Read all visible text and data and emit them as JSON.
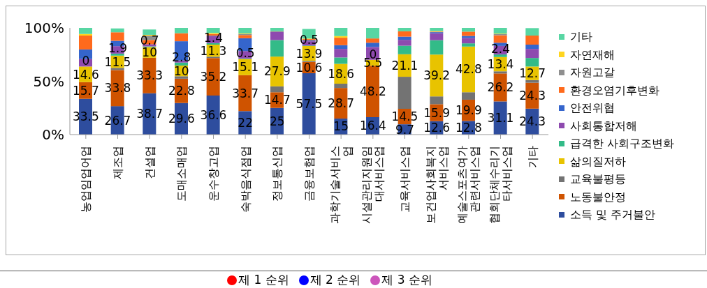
{
  "chart_data": {
    "type": "bar",
    "stacked": true,
    "categories": [
      "농업임업어업",
      "제조업",
      "건설업",
      "도매소매업",
      "운수창고업",
      "숙박음식점업",
      "정보통신업",
      "금융보험업",
      "과학기술서비스업",
      "시설관리지원임대서비스업",
      "교육서비스업",
      "보건업사회복지서비스업",
      "예술스포츠여가관련서비스업",
      "협회단체수리기타서비스업",
      "기타"
    ],
    "series": [
      {
        "name": "소득 및 주거불안",
        "color": "#2e4d9e",
        "values": [
          33.5,
          26.7,
          38.7,
          29.6,
          36.6,
          22,
          25,
          57.5,
          15,
          16.4,
          9.7,
          12.6,
          12.8,
          31.1,
          24.3
        ],
        "value_labels": [
          "33.5",
          "26.7",
          "38.7",
          "29.6",
          "36.6",
          "22",
          "25",
          "57.5",
          "15",
          "16.4",
          "9.7",
          "12.6",
          "12.8",
          "31.1",
          "24.3"
        ]
      },
      {
        "name": "노동불안정",
        "color": "#cf5300",
        "values": [
          15.7,
          33.8,
          33.3,
          22.8,
          35.2,
          33.7,
          14.7,
          10.6,
          28.7,
          48.2,
          14.5,
          15.9,
          19.9,
          26.2,
          24.3
        ],
        "value_labels": [
          "15.7",
          "33.8",
          "33.3",
          "22.8",
          "35.2",
          "33.7",
          "14.7",
          "10.6",
          "28.7",
          "48.2",
          "14.5",
          "15.9",
          "19.9",
          "26.2",
          "24.3"
        ]
      },
      {
        "name": "교육불평등",
        "color": "#737373",
        "values": [
          0,
          2,
          0,
          2.3,
          1.2,
          0,
          5.5,
          1,
          4,
          0,
          30,
          7.3,
          7,
          2,
          2.5
        ]
      },
      {
        "name": "삶의질저하",
        "color": "#e8c300",
        "values": [
          14.6,
          11.5,
          10,
          10,
          11.3,
          15.1,
          27.9,
          13.9,
          18.6,
          5.5,
          21.1,
          39.2,
          42.8,
          13.4,
          12.7
        ],
        "value_labels": [
          "14.6",
          "11.5",
          "10",
          "10",
          "11.3",
          "15.1",
          "27.9",
          "13.9",
          "18.6",
          "5.5",
          "21.1",
          "39.2",
          "42.8",
          "13.4",
          "12.7"
        ]
      },
      {
        "name": "급격한 사회구조변화",
        "color": "#33bb88",
        "values": [
          0,
          1.9,
          0.7,
          2.8,
          1.4,
          0.5,
          15.5,
          0.5,
          6,
          0,
          8,
          13.5,
          3,
          2.4,
          8
        ],
        "value_labels": [
          "0",
          "1.9",
          "0.7",
          "2.8",
          "1.4",
          "0.5",
          null,
          "0.5",
          null,
          "0",
          null,
          null,
          null,
          "2.4",
          null
        ]
      },
      {
        "name": "사회통합저해",
        "color": "#8e4aaf",
        "values": [
          7,
          7,
          2,
          2,
          6.5,
          7,
          7.5,
          4,
          8,
          12,
          5.5,
          6.5,
          5,
          8,
          8.5
        ]
      },
      {
        "name": "안전위협",
        "color": "#3565cc",
        "values": [
          9,
          5,
          null,
          18,
          0.5,
          12,
          0,
          1,
          3.5,
          4,
          3,
          1,
          2,
          3,
          4
        ]
      },
      {
        "name": "환경오염기후변화",
        "color": "#ff6a1c",
        "values": [
          13,
          8,
          4,
          7.5,
          1.5,
          3,
          0,
          1,
          7,
          4,
          5,
          0.5,
          4,
          7,
          8.5
        ]
      },
      {
        "name": "자원고갈",
        "color": "#8f8f8f",
        "values": [
          0,
          null,
          4,
          0,
          0,
          1,
          1,
          null,
          0,
          0,
          0,
          0,
          0,
          1,
          0
        ]
      },
      {
        "name": "자연재해",
        "color": "#ffd51f",
        "values": [
          1.5,
          0,
          0.8,
          0,
          1,
          0.5,
          0,
          0.5,
          1.5,
          0,
          0,
          0.5,
          0,
          0.5,
          0
        ]
      },
      {
        "name": "기타",
        "color": "#58d6a3",
        "values": [
          5.7,
          3.6,
          5,
          5,
          4.8,
          5.2,
          2.9,
          9,
          7.7,
          9.9,
          3.2,
          3,
          3.5,
          5.4,
          7
        ]
      }
    ],
    "ylim": [
      0,
      100
    ],
    "yticks": [
      {
        "value": 0,
        "label": "0%"
      },
      {
        "value": 50,
        "label": "50%"
      },
      {
        "value": 100,
        "label": "100%"
      }
    ],
    "legend": "right",
    "grid": false,
    "annotations": [
      "제 1 순위",
      "제 2 순위",
      "제 3 순위"
    ]
  }
}
